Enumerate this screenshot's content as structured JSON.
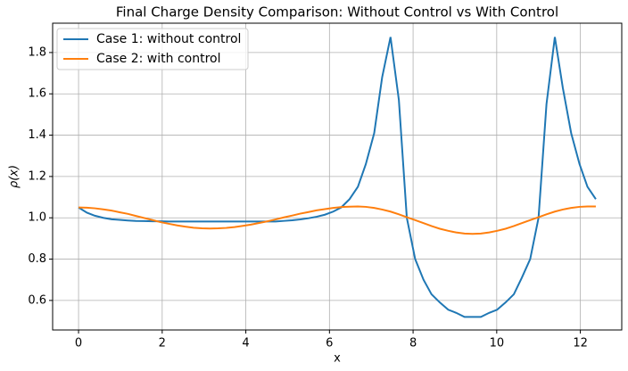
{
  "chart_data": {
    "type": "line",
    "title": "Final Charge Density Comparison: Without Control vs With Control",
    "xlabel": "x",
    "ylabel": "ρ(x)",
    "x": [
      0,
      0.2,
      0.39,
      0.59,
      0.79,
      0.98,
      1.18,
      1.37,
      1.57,
      1.77,
      1.96,
      2.16,
      2.36,
      2.55,
      2.75,
      2.95,
      3.14,
      3.34,
      3.53,
      3.73,
      3.93,
      4.12,
      4.32,
      4.52,
      4.71,
      4.91,
      5.11,
      5.3,
      5.5,
      5.69,
      5.89,
      6.09,
      6.28,
      6.48,
      6.68,
      6.87,
      7.07,
      7.26,
      7.46,
      7.66,
      7.85,
      8.05,
      8.25,
      8.44,
      8.64,
      8.84,
      9.03,
      9.23,
      9.42,
      9.62,
      9.82,
      10.01,
      10.21,
      10.41,
      10.6,
      10.8,
      11,
      11.19,
      11.39,
      11.58,
      11.78,
      11.98,
      12.17,
      12.37
    ],
    "series": [
      {
        "name": "Case 1: without control",
        "color": "#1f77b4",
        "values": [
          1.05,
          1.025,
          1.01,
          1.0,
          0.993,
          0.99,
          0.987,
          0.985,
          0.984,
          0.983,
          0.983,
          0.982,
          0.982,
          0.982,
          0.982,
          0.982,
          0.982,
          0.982,
          0.982,
          0.982,
          0.982,
          0.982,
          0.982,
          0.982,
          0.982,
          0.985,
          0.988,
          0.992,
          0.998,
          1.005,
          1.015,
          1.03,
          1.05,
          1.09,
          1.15,
          1.26,
          1.41,
          1.68,
          1.875,
          1.57,
          1.0,
          0.8,
          0.7,
          0.63,
          0.59,
          0.555,
          0.54,
          0.52,
          0.52,
          0.52,
          0.54,
          0.555,
          0.59,
          0.63,
          0.71,
          0.8,
          1.0,
          1.55,
          1.875,
          1.63,
          1.41,
          1.26,
          1.15,
          1.09
        ]
      },
      {
        "name": "Case 2: with control",
        "color": "#ff7f0e",
        "values": [
          1.05,
          1.049,
          1.046,
          1.041,
          1.035,
          1.027,
          1.019,
          1.009,
          0.999,
          0.989,
          0.979,
          0.971,
          0.963,
          0.957,
          0.952,
          0.949,
          0.948,
          0.949,
          0.951,
          0.955,
          0.961,
          0.967,
          0.975,
          0.983,
          0.992,
          1.002,
          1.011,
          1.02,
          1.028,
          1.036,
          1.042,
          1.048,
          1.052,
          1.054,
          1.055,
          1.053,
          1.048,
          1.04,
          1.03,
          1.017,
          1.003,
          0.989,
          0.974,
          0.96,
          0.947,
          0.937,
          0.929,
          0.924,
          0.922,
          0.924,
          0.929,
          0.937,
          0.947,
          0.96,
          0.974,
          0.989,
          1.003,
          1.017,
          1.03,
          1.04,
          1.048,
          1.053,
          1.055,
          1.055
        ]
      }
    ],
    "xlim": [
      -0.62,
      12.99
    ],
    "ylim": [
      0.457,
      1.942
    ],
    "xticks": [
      0,
      2,
      4,
      6,
      8,
      10,
      12
    ],
    "yticks": [
      0.6,
      0.8,
      {
        "value": 1,
        "label": "1.0"
      },
      1.2,
      1.4,
      1.6,
      1.8
    ],
    "grid": true,
    "legend": "upper left"
  }
}
